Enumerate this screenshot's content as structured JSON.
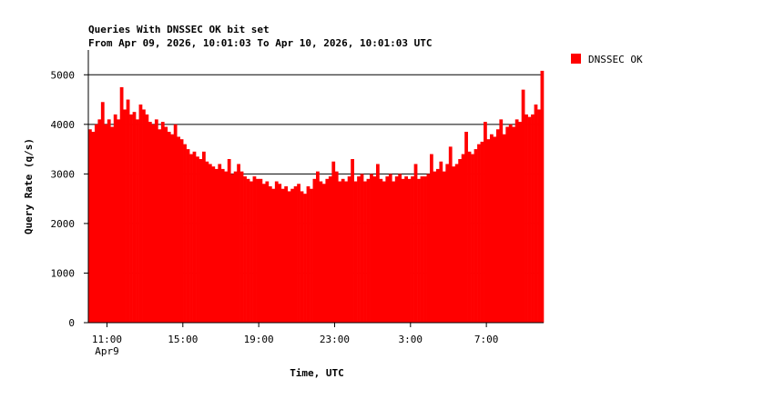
{
  "chart_data": {
    "type": "bar",
    "title": "Queries With DNSSEC OK bit set",
    "subtitle": "From Apr 09, 2026, 10:01:03 To Apr 10, 2026, 10:01:03 UTC",
    "y_label": "Query Rate (q/s)",
    "x_label": "Time, UTC",
    "x_date_label": "Apr9",
    "series": [
      {
        "name": "DNSSEC OK",
        "color": "#ff0000",
        "values": [
          3900,
          3850,
          4000,
          4100,
          4450,
          4000,
          4100,
          3950,
          4200,
          4100,
          4750,
          4300,
          4500,
          4200,
          4250,
          4100,
          4400,
          4300,
          4200,
          4050,
          4000,
          4100,
          3900,
          4050,
          3950,
          3850,
          3800,
          4000,
          3750,
          3700,
          3600,
          3500,
          3400,
          3450,
          3350,
          3300,
          3450,
          3250,
          3200,
          3150,
          3100,
          3200,
          3100,
          3050,
          3300,
          3000,
          3050,
          3200,
          3050,
          2950,
          2900,
          2850,
          2950,
          2900,
          2900,
          2800,
          2850,
          2750,
          2700,
          2850,
          2800,
          2700,
          2750,
          2650,
          2700,
          2750,
          2800,
          2650,
          2600,
          2750,
          2700,
          2900,
          3050,
          2850,
          2800,
          2900,
          2950,
          3250,
          3050,
          2850,
          2900,
          2850,
          2950,
          3300,
          2850,
          2950,
          3000,
          2850,
          2900,
          3000,
          2950,
          3200,
          2900,
          2850,
          2950,
          3000,
          2850,
          2950,
          3000,
          2900,
          2950,
          2900,
          2950,
          3200,
          2900,
          2950,
          2950,
          3000,
          3400,
          3050,
          3100,
          3250,
          3050,
          3200,
          3550,
          3150,
          3200,
          3300,
          3400,
          3850,
          3450,
          3400,
          3500,
          3600,
          3650,
          4050,
          3700,
          3800,
          3750,
          3900,
          4100,
          3800,
          3950,
          4000,
          3950,
          4100,
          4050,
          4700,
          4200,
          4150,
          4200,
          4400,
          4300,
          5080
        ]
      }
    ],
    "xlim": [
      10.0175,
      34.0175
    ],
    "xticks": [
      {
        "value": 11,
        "label": "11:00"
      },
      {
        "value": 15,
        "label": "15:00"
      },
      {
        "value": 19,
        "label": "19:00"
      },
      {
        "value": 23,
        "label": "23:00"
      },
      {
        "value": 27,
        "label": "3:00"
      },
      {
        "value": 31,
        "label": "7:00"
      }
    ],
    "ylim": [
      0,
      5500
    ],
    "yticks": [
      0,
      1000,
      2000,
      3000,
      4000,
      5000
    ],
    "grid": true,
    "legend": "right"
  }
}
